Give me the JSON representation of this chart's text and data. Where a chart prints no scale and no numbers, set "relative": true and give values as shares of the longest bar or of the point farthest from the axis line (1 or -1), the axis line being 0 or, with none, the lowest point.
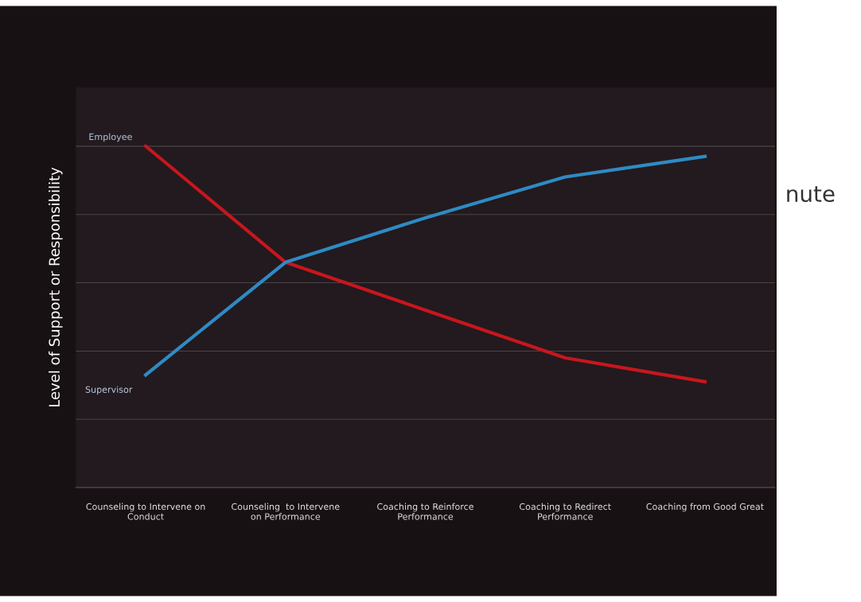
{
  "chart_data": {
    "type": "line",
    "relative": true,
    "ylabel": "Level of Support or Responsibility",
    "categories": [
      "Counseling to Intervene on\nConduct",
      "Counseling  to Intervene\non Performance",
      "Coaching to Reinforce\nPerformance",
      "Coaching to Redirect\nPerformance",
      "Coaching from Good Great"
    ],
    "series": [
      {
        "color": "#c8161e",
        "values": [
          1,
          0.66,
          0.52,
          0.38,
          0.31
        ]
      },
      {
        "color": "#2f8ac4",
        "values": [
          0.33,
          0.66,
          0.79,
          0.91,
          0.97
        ]
      }
    ],
    "annotations": [
      "Employee",
      "Supervisor",
      "nute"
    ],
    "grid": "y",
    "marker": "none",
    "line_style": "solid"
  }
}
